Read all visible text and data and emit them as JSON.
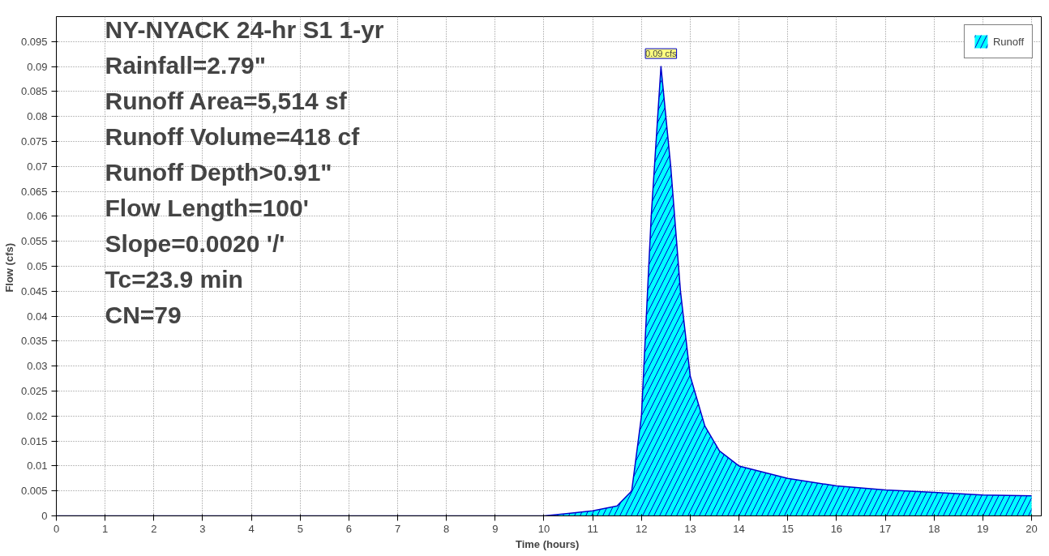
{
  "chart_data": {
    "type": "area",
    "xlabel": "Time  (hours)",
    "ylabel": "Flow  (cfs)",
    "x": [
      0,
      1,
      2,
      3,
      4,
      5,
      6,
      7,
      8,
      9,
      10,
      10.5,
      11,
      11.5,
      11.8,
      12.0,
      12.2,
      12.4,
      12.6,
      12.8,
      13.0,
      13.3,
      13.6,
      14,
      15,
      16,
      17,
      18,
      19,
      20
    ],
    "series": [
      {
        "name": "Runoff",
        "color": "#00ffff",
        "values": [
          0,
          0,
          0,
          0,
          0,
          0,
          0,
          0,
          0,
          0,
          0,
          0.0005,
          0.001,
          0.002,
          0.005,
          0.02,
          0.06,
          0.09,
          0.07,
          0.045,
          0.028,
          0.018,
          0.013,
          0.01,
          0.0075,
          0.006,
          0.0052,
          0.0047,
          0.0042,
          0.004
        ]
      }
    ],
    "xlim": [
      0,
      20.2
    ],
    "xticks": [
      0,
      1,
      2,
      3,
      4,
      5,
      6,
      7,
      8,
      9,
      10,
      11,
      12,
      13,
      14,
      15,
      16,
      17,
      18,
      19,
      20
    ],
    "ylim": [
      0,
      0.1
    ],
    "yticks": [
      0,
      0.005,
      0.01,
      0.015,
      0.02,
      0.025,
      0.03,
      0.035,
      0.04,
      0.045,
      0.05,
      0.055,
      0.06,
      0.065,
      0.07,
      0.075,
      0.08,
      0.085,
      0.09,
      0.095
    ],
    "grid": true,
    "legend": "top right",
    "annotations": [
      "NY-NYACK 24-hr S1 1-yr",
      "Rainfall=2.79\"",
      "Runoff Area=5,514 sf",
      "Runoff Volume=418 cf",
      "Runoff Depth>0.91\"",
      "Flow Length=100'",
      "Slope=0.0020 '/'",
      "Tc=23.9 min",
      "CN=79",
      {
        "text": "0.09 cfs",
        "x": 12.4,
        "y": 0.09
      }
    ]
  }
}
